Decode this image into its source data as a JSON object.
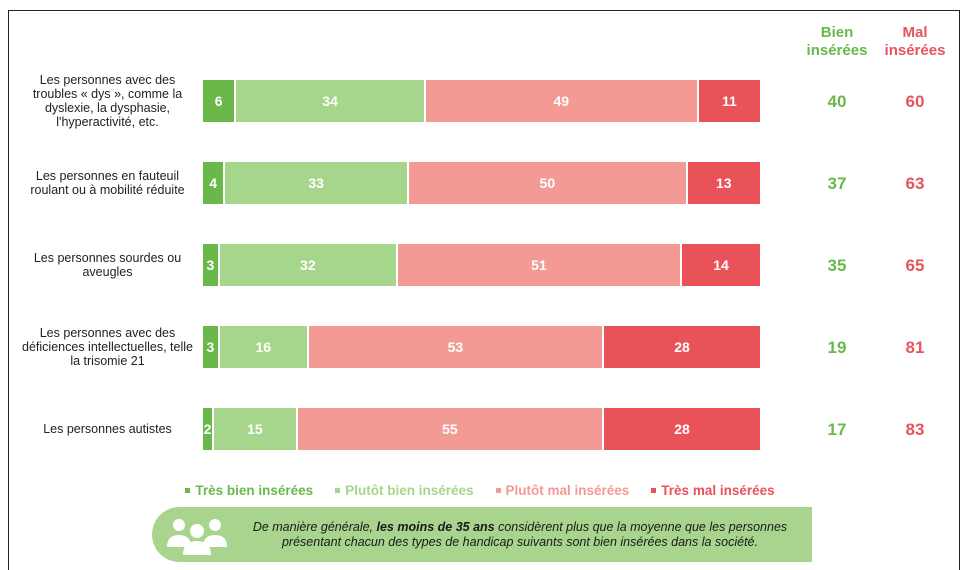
{
  "columns": {
    "bien": "Bien\ninsérées",
    "mal": "Mal\ninsérées"
  },
  "colors": {
    "tres_bien": "#6ab84a",
    "plutot_bien": "#a6d68c",
    "plutot_mal": "#f49a94",
    "tres_mal": "#ea525a"
  },
  "chart_data": {
    "type": "bar",
    "orientation": "horizontal",
    "stacked": true,
    "title": "",
    "categories": [
      "Les personnes avec des troubles « dys », comme la dyslexie, la dysphasie, l'hyperactivité, etc.",
      "Les personnes en fauteuil roulant ou à mobilité réduite",
      "Les personnes sourdes ou aveugles",
      "Les personnes avec des déficiences intellectuelles, telle la trisomie 21",
      "Les personnes autistes"
    ],
    "series": [
      {
        "name": "Très bien insérées",
        "values": [
          6,
          4,
          3,
          3,
          2
        ]
      },
      {
        "name": "Plutôt bien insérées",
        "values": [
          34,
          33,
          32,
          16,
          15
        ]
      },
      {
        "name": "Plutôt mal insérées",
        "values": [
          49,
          50,
          51,
          53,
          55
        ]
      },
      {
        "name": "Très mal insérées",
        "values": [
          11,
          13,
          14,
          28,
          28
        ]
      }
    ],
    "totals": {
      "bien": [
        40,
        37,
        35,
        19,
        17
      ],
      "mal": [
        60,
        63,
        65,
        81,
        83
      ]
    },
    "legend_position": "bottom"
  },
  "note": {
    "before": "De manière générale, ",
    "bold": "les moins de 35 ans",
    "after": " considèrent plus que la moyenne que les personnes présentant chacun des types de handicap suivants sont bien insérées dans la société.",
    "icon": "people-group-icon"
  }
}
